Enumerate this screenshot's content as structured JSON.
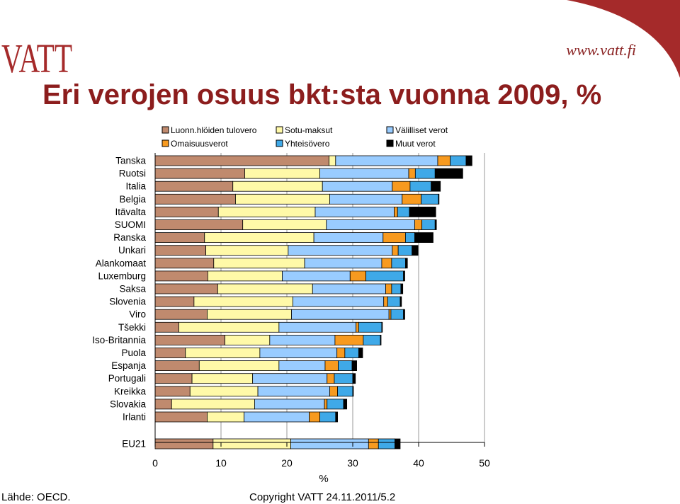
{
  "header": {
    "logo_text": "VATT",
    "website": "www.vatt.fi",
    "title": "Eri verojen osuus bkt:sta vuonna 2009, %"
  },
  "footer": {
    "source": "Lähde: OECD.",
    "copyright": "Copyright VATT 24.11.2011/5.2"
  },
  "colors": {
    "title": "#8c1d1d",
    "corner": "#a52a2a",
    "series": [
      "#c08a6e",
      "#fff9a8",
      "#99ccff",
      "#f79a1f",
      "#3fa9e8",
      "#000000"
    ]
  },
  "chart_data": {
    "type": "bar",
    "orientation": "horizontal",
    "stacked": true,
    "xlabel": "%",
    "xlim": [
      0,
      50
    ],
    "xticks": [
      0,
      10,
      20,
      30,
      40,
      50
    ],
    "legend_position": "top",
    "categories": [
      "Tanska",
      "Ruotsi",
      "Italia",
      "Belgia",
      "Itävalta",
      "SUOMI",
      "Ranska",
      "Unkari",
      "Alankomaat",
      "Luxemburg",
      "Saksa",
      "Slovenia",
      "Viro",
      "Tšekki",
      "Iso-Britannia",
      "Puola",
      "Espanja",
      "Portugali",
      "Kreikka",
      "Slovakia",
      "Irlanti",
      "EU21"
    ],
    "series": [
      {
        "name": "Luonn.hlöiden tulovero",
        "values": [
          26.4,
          13.6,
          11.8,
          12.2,
          9.6,
          13.3,
          7.5,
          7.7,
          8.9,
          8.0,
          9.5,
          5.9,
          7.9,
          3.6,
          10.6,
          4.6,
          6.7,
          5.6,
          5.3,
          2.5,
          7.9,
          8.8
        ]
      },
      {
        "name": "Sotu-maksut",
        "values": [
          1.0,
          11.4,
          13.6,
          14.3,
          14.7,
          12.7,
          16.6,
          12.5,
          13.8,
          11.3,
          14.4,
          15.0,
          12.8,
          15.2,
          6.8,
          11.3,
          12.1,
          9.2,
          10.3,
          12.6,
          5.6,
          11.8
        ]
      },
      {
        "name": "Välilliset verot",
        "values": [
          15.5,
          13.5,
          10.6,
          11.0,
          12.0,
          13.4,
          10.5,
          15.8,
          11.7,
          10.3,
          11.1,
          13.8,
          14.8,
          11.7,
          9.9,
          11.7,
          7.0,
          11.3,
          10.9,
          10.6,
          9.9,
          11.8
        ]
      },
      {
        "name": "Omaisuusverot",
        "values": [
          1.9,
          1.0,
          2.7,
          2.9,
          0.5,
          1.1,
          3.4,
          0.9,
          1.5,
          2.4,
          0.9,
          0.6,
          0.3,
          0.4,
          4.3,
          1.2,
          2.0,
          1.1,
          1.2,
          0.4,
          1.6,
          1.5
        ]
      },
      {
        "name": "Yhteisövero",
        "values": [
          2.4,
          3.0,
          3.2,
          2.6,
          1.8,
          2.0,
          1.4,
          2.1,
          2.1,
          5.7,
          1.4,
          1.9,
          1.9,
          3.5,
          2.6,
          2.1,
          2.1,
          2.8,
          2.3,
          2.5,
          2.4,
          2.5
        ]
      },
      {
        "name": "Muut verot",
        "values": [
          0.9,
          4.2,
          1.4,
          0.1,
          4.0,
          0.2,
          2.8,
          0.9,
          0.3,
          0.2,
          0.3,
          0.2,
          0.2,
          0.1,
          0.1,
          0.6,
          0.7,
          0.4,
          0.1,
          0.5,
          0.3,
          0.8
        ]
      }
    ]
  }
}
